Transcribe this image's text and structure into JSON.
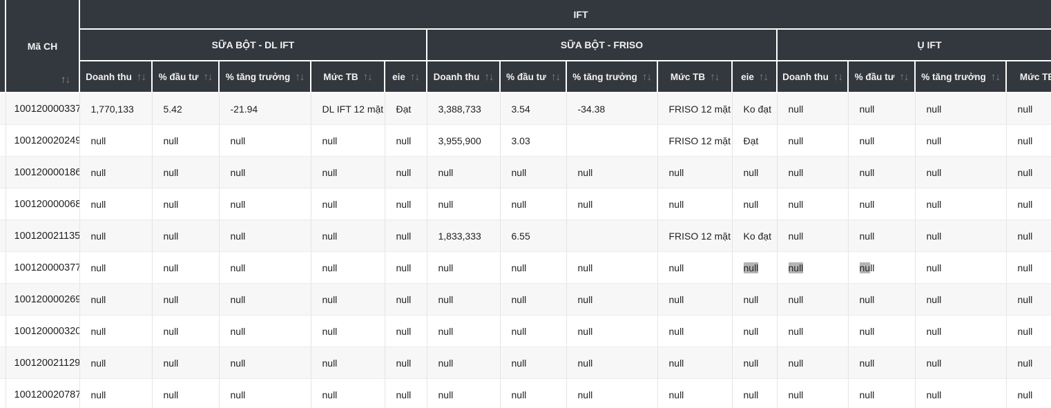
{
  "icons": {
    "sort_asc": "↑",
    "sort_desc": "↓"
  },
  "colors": {
    "header_bg": "#33383e",
    "header_text": "#f2f2f2",
    "sort_icon": "#7a8088",
    "sort_icon_active": "#64a1d8",
    "row_odd_bg": "#f7f7f7",
    "row_even_bg": "#ffffff",
    "grid_line": "#e4e4e4",
    "body_text": "#212121",
    "selection_bg": "#b4b4b4"
  },
  "table": {
    "corner_label": "Mã CH",
    "top_header": "IFT",
    "groups": [
      {
        "label": "SỮA BỘT - DL IFT",
        "columns": [
          "Doanh thu",
          "% đầu tư",
          "% tăng trưởng",
          "Mức TB",
          "eie"
        ]
      },
      {
        "label": "SỮA BỘT - FRISO",
        "columns": [
          "Doanh thu",
          "% đầu tư",
          "% tăng trưởng",
          "Mức TB",
          "eie"
        ]
      },
      {
        "label": "Ụ IFT",
        "columns": [
          "Doanh thu",
          "% đầu tư",
          "% tăng trưởng",
          "Mức TB"
        ]
      }
    ],
    "rows": [
      {
        "id": "100120000337",
        "cells": [
          "1,770,133",
          "5.42",
          "-21.94",
          "DL IFT 12 mặt",
          "Đạt",
          "3,388,733",
          "3.54",
          "-34.38",
          "FRISO 12 mặt",
          "Ko đạt",
          "null",
          "null",
          "null",
          "null"
        ]
      },
      {
        "id": "100120020249",
        "cells": [
          "null",
          "null",
          "null",
          "null",
          "null",
          "3,955,900",
          "3.03",
          "",
          "FRISO 12 mặt",
          "Đạt",
          "null",
          "null",
          "null",
          "null"
        ]
      },
      {
        "id": "100120000186",
        "cells": [
          "null",
          "null",
          "null",
          "null",
          "null",
          "null",
          "null",
          "null",
          "null",
          "null",
          "null",
          "null",
          "null",
          "null"
        ]
      },
      {
        "id": "100120000068",
        "cells": [
          "null",
          "null",
          "null",
          "null",
          "null",
          "null",
          "null",
          "null",
          "null",
          "null",
          "null",
          "null",
          "null",
          "null"
        ]
      },
      {
        "id": "100120021135",
        "cells": [
          "null",
          "null",
          "null",
          "null",
          "null",
          "1,833,333",
          "6.55",
          "",
          "FRISO 12 mặt",
          "Ko đạt",
          "null",
          "null",
          "null",
          "null"
        ]
      },
      {
        "id": "100120000377",
        "cells": [
          "null",
          "null",
          "null",
          "null",
          "null",
          "null",
          "null",
          "null",
          "null",
          "null",
          "null",
          "null",
          "null",
          "null"
        ]
      },
      {
        "id": "100120000269",
        "cells": [
          "null",
          "null",
          "null",
          "null",
          "null",
          "null",
          "null",
          "null",
          "null",
          "null",
          "null",
          "null",
          "null",
          "null"
        ]
      },
      {
        "id": "100120000320",
        "cells": [
          "null",
          "null",
          "null",
          "null",
          "null",
          "null",
          "null",
          "null",
          "null",
          "null",
          "null",
          "null",
          "null",
          "null"
        ]
      },
      {
        "id": "100120021129",
        "cells": [
          "null",
          "null",
          "null",
          "null",
          "null",
          "null",
          "null",
          "null",
          "null",
          "null",
          "null",
          "null",
          "null",
          "null"
        ]
      },
      {
        "id": "100120020787",
        "cells": [
          "null",
          "null",
          "null",
          "null",
          "null",
          "null",
          "null",
          "null",
          "null",
          "null",
          "null",
          "null",
          "null",
          "null"
        ]
      }
    ]
  },
  "selection": {
    "row_index": 5,
    "highlights": [
      {
        "cell": 9,
        "chars": 4
      },
      {
        "cell": 10,
        "chars": 4
      },
      {
        "cell": 11,
        "chars": 2
      }
    ]
  }
}
